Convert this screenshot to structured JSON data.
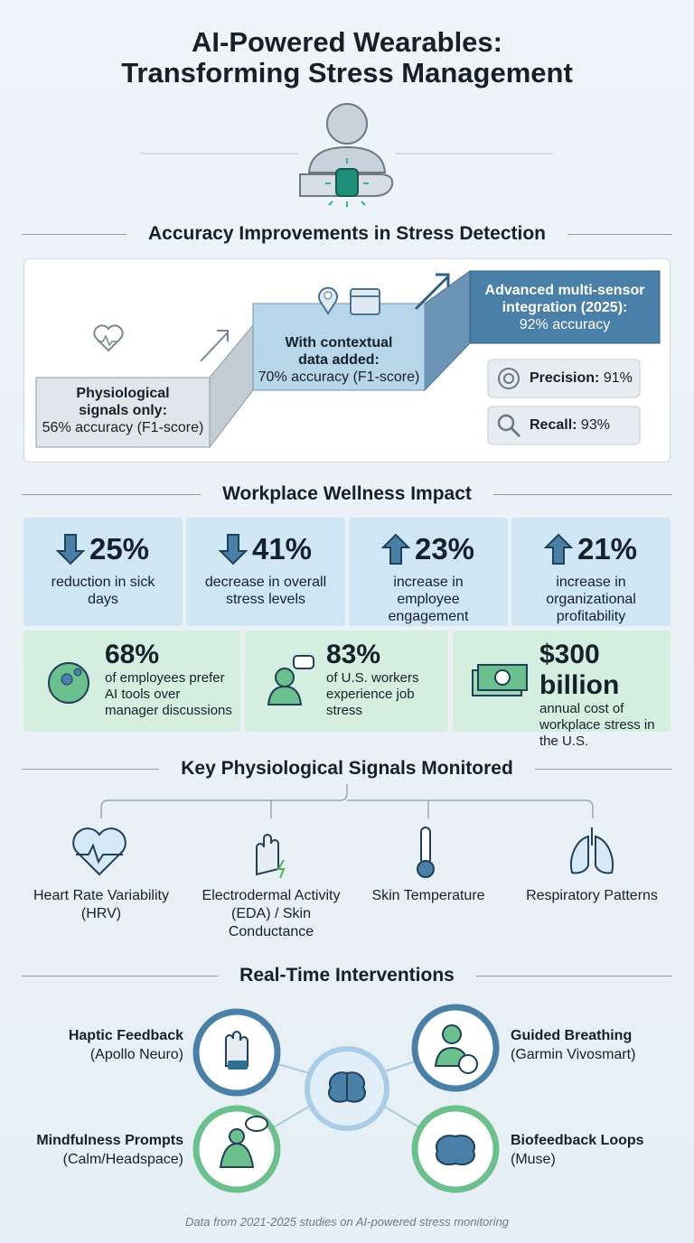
{
  "header": {
    "title_lines": [
      "AI-Powered Wearables:",
      "Transforming Stress Management"
    ]
  },
  "accuracy": {
    "title": "Accuracy Improvements in Stress Detection",
    "steps": [
      {
        "title": "Physiological signals only:",
        "detail": "56% accuracy (F1-score)"
      },
      {
        "title": "With contextual data added:",
        "detail": "70% accuracy (F1-score)"
      },
      {
        "title": "Advanced multi-sensor integration (2025):",
        "detail": "92% accuracy"
      }
    ],
    "metrics": [
      {
        "label": "Precision:",
        "value": "91%"
      },
      {
        "label": "Recall:",
        "value": "93%"
      }
    ]
  },
  "wellness": {
    "title": "Workplace Wellness Impact",
    "stats": [
      {
        "direction": "down",
        "value": "25%",
        "text": "reduction in sick days"
      },
      {
        "direction": "down",
        "value": "41%",
        "text": "decrease in overall stress levels"
      },
      {
        "direction": "up",
        "value": "23%",
        "text": "increase in employee engagement"
      },
      {
        "direction": "up",
        "value": "21%",
        "text": "increase in organizational profitability"
      }
    ],
    "facts": [
      {
        "value": "68%",
        "text": "of employees prefer AI tools over manager discussions"
      },
      {
        "value": "83%",
        "text": "of U.S. workers experience job stress"
      },
      {
        "value": "$300 billion",
        "text": "annual cost of workplace stress in the U.S."
      }
    ]
  },
  "signals": {
    "title": "Key Physiological Signals Monitored",
    "items": [
      "Heart Rate Variability (HRV)",
      "Electrodermal Activity (EDA) / Skin Conductance",
      "Skin Temperature",
      "Respiratory Patterns"
    ]
  },
  "interventions": {
    "title": "Real-Time Interventions",
    "items": [
      {
        "name": "Haptic Feedback",
        "source": "(Apollo Neuro)"
      },
      {
        "name": "Guided Breathing",
        "source": "(Garmin Vivosmart)"
      },
      {
        "name": "Mindfulness Prompts",
        "source": "(Calm/Headspace)"
      },
      {
        "name": "Biofeedback Loops",
        "source": "(Muse)"
      }
    ]
  },
  "footer": {
    "note": "Data from 2021-2025 studies on AI-powered stress monitoring"
  }
}
